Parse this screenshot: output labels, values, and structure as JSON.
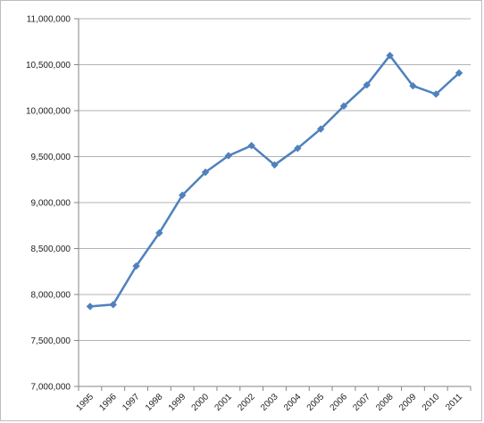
{
  "chart_data": {
    "type": "line",
    "title": "",
    "xlabel": "",
    "ylabel": "",
    "x": [
      "1995",
      "1996",
      "1997",
      "1998",
      "1999",
      "2000",
      "2001",
      "2002",
      "2003",
      "2004",
      "2005",
      "2006",
      "2007",
      "2008",
      "2009",
      "2010",
      "2011"
    ],
    "series": [
      {
        "values": [
          7870000,
          7890000,
          8310000,
          8670000,
          9080000,
          9330000,
          9510000,
          9620000,
          9410000,
          9590000,
          9800000,
          10050000,
          10280000,
          10600000,
          10270000,
          10180000,
          10410000
        ],
        "color": "#4f81bd",
        "marker": "diamond"
      }
    ],
    "ylim": [
      7000000,
      11000000
    ],
    "yticks": [
      7000000,
      7500000,
      8000000,
      8500000,
      9000000,
      9500000,
      10000000,
      10500000,
      11000000
    ],
    "ytick_labels": [
      "7,000,000",
      "7,500,000",
      "8,000,000",
      "8,500,000",
      "9,000,000",
      "9,500,000",
      "10,000,000",
      "10,500,000",
      "11,000,000"
    ],
    "grid": "horizontal",
    "gridline_color": "#b3b3b3",
    "legend": "none"
  }
}
